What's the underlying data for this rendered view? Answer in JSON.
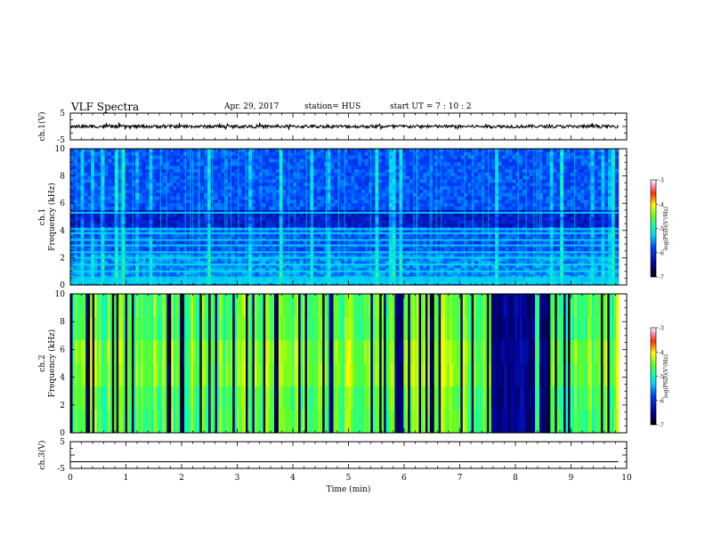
{
  "header": {
    "title": "VLF Spectra",
    "date": "Apr. 29, 2017",
    "station": "station= HUS",
    "start": "start  UT  =   7 : 10 : 2"
  },
  "chart_data": [
    {
      "type": "line",
      "panel": "ch1-waveform",
      "ylabel": "ch.1(V)",
      "ylim": [
        -5,
        5
      ],
      "yticks": [
        5,
        -5
      ],
      "xlim": [
        0,
        10
      ],
      "trace": {
        "description_value_v": 0,
        "noise_amplitude_v": 0.6
      }
    },
    {
      "type": "heatmap",
      "panel": "ch1-spectrogram",
      "ylabel": "ch.1\nFrequency (kHz)",
      "ylim": [
        0,
        10
      ],
      "yticks": [
        0,
        2,
        4,
        6,
        8,
        10
      ],
      "xlim": [
        0,
        9.85
      ],
      "colorbar": {
        "label": "log(PSD)(V²/Hz)",
        "range": [
          -7,
          -3
        ],
        "ticks": [
          -3,
          -4,
          -5,
          -6,
          -7
        ]
      },
      "horizontal_bands_khz": [
        0.15,
        0.25,
        0.4,
        0.55,
        1.0,
        1.5,
        2.0,
        2.4,
        2.9,
        3.3,
        3.8,
        4.1,
        5.3
      ]
    },
    {
      "type": "heatmap",
      "panel": "ch2-spectrogram",
      "ylabel": "ch.2\nFrequency (kHz)",
      "ylim": [
        0,
        10
      ],
      "yticks": [
        0,
        2,
        4,
        6,
        8,
        10
      ],
      "xlim": [
        0,
        9.85
      ],
      "colorbar": {
        "label": "log(PSD)(V²/Hz)",
        "range": [
          -7,
          -3
        ],
        "ticks": [
          -3,
          -4,
          -5,
          -6,
          -7
        ]
      },
      "dark_intervals_min": [
        [
          5.85,
          6.0
        ],
        [
          7.55,
          8.35
        ],
        [
          8.45,
          8.55
        ]
      ]
    },
    {
      "type": "line",
      "panel": "ch3-waveform",
      "ylabel": "ch.3(V)",
      "ylim": [
        -5,
        5
      ],
      "yticks": [
        5,
        -5
      ],
      "xlim": [
        0,
        10
      ],
      "trace": {
        "constant_value_v": -2.5
      }
    }
  ],
  "xaxis": {
    "label": "Time (min)",
    "ticks": [
      "0",
      "1",
      "2",
      "3",
      "4",
      "5",
      "6",
      "7",
      "8",
      "9",
      "10"
    ]
  }
}
